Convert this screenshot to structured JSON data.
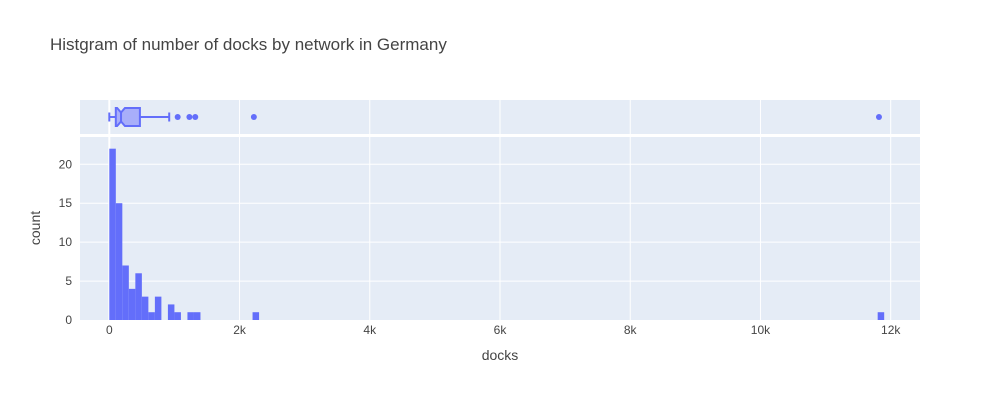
{
  "chart_data": {
    "type": "histogram",
    "title": "Histgram of number of docks by network in Germany",
    "xlabel": "docks",
    "ylabel": "count",
    "xlim": [
      -450,
      12450
    ],
    "ylim": [
      0,
      23.5
    ],
    "grid": true,
    "bin_width": 100,
    "x_ticks": [
      {
        "value": 0,
        "label": "0"
      },
      {
        "value": 2000,
        "label": "2k"
      },
      {
        "value": 4000,
        "label": "4k"
      },
      {
        "value": 6000,
        "label": "6k"
      },
      {
        "value": 8000,
        "label": "8k"
      },
      {
        "value": 10000,
        "label": "10k"
      },
      {
        "value": 12000,
        "label": "12k"
      }
    ],
    "y_ticks": [
      {
        "value": 0,
        "label": "0"
      },
      {
        "value": 5,
        "label": "5"
      },
      {
        "value": 10,
        "label": "10"
      },
      {
        "value": 15,
        "label": "15"
      },
      {
        "value": 20,
        "label": "20"
      }
    ],
    "bins": [
      {
        "start": 0,
        "count": 22
      },
      {
        "start": 100,
        "count": 15
      },
      {
        "start": 200,
        "count": 7
      },
      {
        "start": 300,
        "count": 4
      },
      {
        "start": 400,
        "count": 6
      },
      {
        "start": 500,
        "count": 3
      },
      {
        "start": 600,
        "count": 1
      },
      {
        "start": 700,
        "count": 3
      },
      {
        "start": 900,
        "count": 2
      },
      {
        "start": 1000,
        "count": 1
      },
      {
        "start": 1200,
        "count": 1
      },
      {
        "start": 1300,
        "count": 1
      },
      {
        "start": 2200,
        "count": 1
      },
      {
        "start": 11800,
        "count": 1
      }
    ],
    "marginal_box": {
      "type": "box",
      "notched": true,
      "whisker_low": 0,
      "q1": 100,
      "median": 180,
      "q3": 470,
      "notch_low": 120,
      "notch_high": 240,
      "whisker_high": 920,
      "outliers": [
        1050,
        1230,
        1320,
        2220,
        11820
      ]
    },
    "colors": {
      "bar": "#636efa",
      "box_line": "#636efa",
      "box_fill": "#a8aefa",
      "plot_bg": "#e5ecf6",
      "grid": "#ffffff",
      "text": "#444444"
    }
  }
}
